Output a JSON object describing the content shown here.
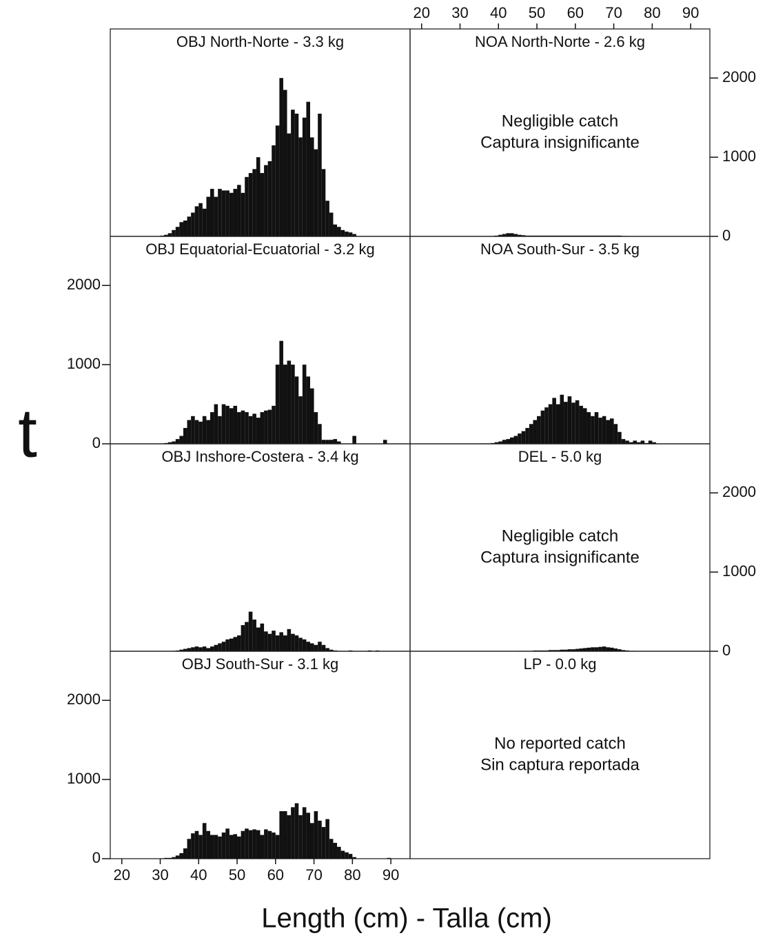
{
  "figure": {
    "ylabel": "t",
    "xlabel": "Length (cm) - Talla (cm)"
  },
  "chart_data": [
    {
      "type": "histogram",
      "title": "OBJ North-Norte - 3.3 kg",
      "color": "#111111",
      "xlim": [
        17,
        95
      ],
      "ylim": [
        0,
        2620
      ],
      "bins": [
        25,
        26,
        27,
        28,
        29,
        30,
        31,
        32,
        33,
        34,
        35,
        36,
        37,
        38,
        39,
        40,
        41,
        42,
        43,
        44,
        45,
        46,
        47,
        48,
        49,
        50,
        51,
        52,
        53,
        54,
        55,
        56,
        57,
        58,
        59,
        60,
        61,
        62,
        63,
        64,
        65,
        66,
        67,
        68,
        69,
        70,
        71,
        72,
        73,
        74,
        75,
        76,
        77,
        78,
        79,
        80,
        81,
        82,
        83,
        84,
        85,
        86,
        87,
        88,
        89,
        90
      ],
      "values": [
        0,
        0,
        0,
        0,
        0,
        10,
        20,
        40,
        80,
        120,
        180,
        200,
        250,
        300,
        380,
        420,
        350,
        500,
        600,
        500,
        600,
        580,
        580,
        550,
        600,
        650,
        550,
        750,
        800,
        850,
        1000,
        800,
        900,
        950,
        1150,
        1400,
        2000,
        1850,
        1300,
        1600,
        1550,
        1250,
        1500,
        1700,
        1250,
        1100,
        1550,
        850,
        450,
        300,
        150,
        120,
        80,
        60,
        50,
        30,
        0,
        0,
        0,
        0,
        0,
        0,
        0,
        0,
        0
      ]
    },
    {
      "type": "histogram",
      "title": "NOA North-Norte - 2.6 kg",
      "color": "#111111",
      "xlim": [
        17,
        95
      ],
      "ylim": [
        0,
        2620
      ],
      "note": [
        "Negligible catch",
        "Captura insignificante"
      ],
      "xticks": [
        20,
        30,
        40,
        50,
        60,
        70,
        80,
        90
      ],
      "xaxis_side": "top",
      "yticks": [
        0,
        1000,
        2000
      ],
      "yaxis_side": "right",
      "bins": [
        25,
        26,
        27,
        28,
        29,
        30,
        31,
        32,
        33,
        34,
        35,
        36,
        37,
        38,
        39,
        40,
        41,
        42,
        43,
        44,
        45,
        46,
        47,
        48,
        49,
        50,
        51,
        52,
        53,
        54,
        55,
        56,
        57,
        58,
        59,
        60,
        61,
        62,
        63,
        64,
        65,
        66,
        67,
        68,
        69,
        70,
        71,
        72,
        73,
        74,
        75,
        76,
        77,
        78,
        79,
        80,
        81,
        82,
        83,
        84,
        85,
        86,
        87,
        88,
        89,
        90
      ],
      "values": [
        0,
        0,
        0,
        0,
        0,
        0,
        0,
        0,
        0,
        0,
        0,
        0,
        0,
        5,
        10,
        20,
        30,
        40,
        40,
        30,
        20,
        15,
        10,
        10,
        10,
        10,
        10,
        10,
        10,
        10,
        10,
        10,
        10,
        10,
        10,
        10,
        10,
        10,
        10,
        10,
        10,
        10,
        10,
        10,
        10,
        10,
        10,
        5,
        5,
        0,
        0,
        0,
        0,
        0,
        0,
        0,
        0,
        0,
        0,
        0,
        0,
        0,
        0,
        0,
        0
      ]
    },
    {
      "type": "histogram",
      "title": "OBJ Equatorial-Ecuatorial - 3.2 kg",
      "color": "#111111",
      "xlim": [
        17,
        95
      ],
      "ylim": [
        0,
        2620
      ],
      "yticks": [
        0,
        1000,
        2000
      ],
      "yaxis_side": "left",
      "bins": [
        25,
        26,
        27,
        28,
        29,
        30,
        31,
        32,
        33,
        34,
        35,
        36,
        37,
        38,
        39,
        40,
        41,
        42,
        43,
        44,
        45,
        46,
        47,
        48,
        49,
        50,
        51,
        52,
        53,
        54,
        55,
        56,
        57,
        58,
        59,
        60,
        61,
        62,
        63,
        64,
        65,
        66,
        67,
        68,
        69,
        70,
        71,
        72,
        73,
        74,
        75,
        76,
        77,
        78,
        79,
        80,
        81,
        82,
        83,
        84,
        85,
        86,
        87,
        88,
        89,
        90
      ],
      "values": [
        0,
        0,
        0,
        0,
        0,
        5,
        10,
        20,
        30,
        60,
        100,
        200,
        300,
        350,
        300,
        280,
        350,
        300,
        400,
        500,
        350,
        500,
        480,
        450,
        480,
        400,
        420,
        400,
        350,
        380,
        330,
        400,
        420,
        430,
        480,
        1000,
        1300,
        1000,
        1050,
        1000,
        850,
        600,
        1000,
        850,
        700,
        400,
        250,
        50,
        50,
        50,
        60,
        30,
        0,
        0,
        0,
        100,
        0,
        0,
        0,
        0,
        0,
        0,
        0,
        50,
        0
      ]
    },
    {
      "type": "histogram",
      "title": "NOA South-Sur - 3.5 kg",
      "color": "#111111",
      "xlim": [
        17,
        95
      ],
      "ylim": [
        0,
        2620
      ],
      "bins": [
        25,
        26,
        27,
        28,
        29,
        30,
        31,
        32,
        33,
        34,
        35,
        36,
        37,
        38,
        39,
        40,
        41,
        42,
        43,
        44,
        45,
        46,
        47,
        48,
        49,
        50,
        51,
        52,
        53,
        54,
        55,
        56,
        57,
        58,
        59,
        60,
        61,
        62,
        63,
        64,
        65,
        66,
        67,
        68,
        69,
        70,
        71,
        72,
        73,
        74,
        75,
        76,
        77,
        78,
        79,
        80,
        81,
        82,
        83,
        84,
        85,
        86,
        87,
        88,
        89,
        90
      ],
      "values": [
        0,
        0,
        0,
        0,
        0,
        0,
        0,
        0,
        0,
        0,
        5,
        5,
        5,
        10,
        20,
        30,
        50,
        60,
        80,
        100,
        130,
        160,
        200,
        250,
        300,
        350,
        420,
        460,
        500,
        580,
        500,
        620,
        530,
        600,
        520,
        550,
        480,
        450,
        400,
        350,
        400,
        330,
        350,
        300,
        320,
        250,
        150,
        60,
        40,
        20,
        40,
        20,
        40,
        10,
        40,
        20,
        0,
        0,
        0,
        0,
        0,
        0,
        0,
        0,
        0
      ]
    },
    {
      "type": "histogram",
      "title": "OBJ Inshore-Costera - 3.4 kg",
      "color": "#111111",
      "xlim": [
        17,
        95
      ],
      "ylim": [
        0,
        2620
      ],
      "bins": [
        25,
        26,
        27,
        28,
        29,
        30,
        31,
        32,
        33,
        34,
        35,
        36,
        37,
        38,
        39,
        40,
        41,
        42,
        43,
        44,
        45,
        46,
        47,
        48,
        49,
        50,
        51,
        52,
        53,
        54,
        55,
        56,
        57,
        58,
        59,
        60,
        61,
        62,
        63,
        64,
        65,
        66,
        67,
        68,
        69,
        70,
        71,
        72,
        73,
        74,
        75,
        76,
        77,
        78,
        79,
        80,
        81,
        82,
        83,
        84,
        85,
        86,
        87,
        88,
        89,
        90
      ],
      "values": [
        0,
        0,
        0,
        0,
        0,
        0,
        0,
        0,
        5,
        10,
        20,
        30,
        40,
        50,
        60,
        50,
        60,
        40,
        60,
        80,
        100,
        120,
        150,
        160,
        180,
        200,
        330,
        370,
        500,
        400,
        300,
        350,
        250,
        220,
        260,
        200,
        240,
        200,
        280,
        220,
        200,
        170,
        150,
        120,
        100,
        80,
        120,
        80,
        40,
        20,
        10,
        5,
        0,
        0,
        10,
        0,
        0,
        0,
        0,
        10,
        0,
        10,
        0,
        0,
        0
      ]
    },
    {
      "type": "histogram",
      "title": "DEL - 5.0 kg",
      "color": "#111111",
      "xlim": [
        17,
        95
      ],
      "ylim": [
        0,
        2620
      ],
      "note": [
        "Negligible catch",
        "Captura insignificante"
      ],
      "yticks": [
        0,
        1000,
        2000
      ],
      "yaxis_side": "right",
      "bins": [
        25,
        26,
        27,
        28,
        29,
        30,
        31,
        32,
        33,
        34,
        35,
        36,
        37,
        38,
        39,
        40,
        41,
        42,
        43,
        44,
        45,
        46,
        47,
        48,
        49,
        50,
        51,
        52,
        53,
        54,
        55,
        56,
        57,
        58,
        59,
        60,
        61,
        62,
        63,
        64,
        65,
        66,
        67,
        68,
        69,
        70,
        71,
        72,
        73,
        74,
        75,
        76,
        77,
        78,
        79,
        80,
        81,
        82,
        83,
        84,
        85,
        86,
        87,
        88,
        89,
        90
      ],
      "values": [
        0,
        0,
        0,
        0,
        0,
        0,
        0,
        0,
        0,
        0,
        0,
        0,
        0,
        0,
        0,
        0,
        0,
        0,
        0,
        0,
        5,
        5,
        5,
        5,
        10,
        10,
        10,
        10,
        15,
        15,
        15,
        20,
        20,
        25,
        25,
        30,
        35,
        40,
        45,
        50,
        50,
        55,
        60,
        50,
        45,
        35,
        25,
        15,
        10,
        5,
        5,
        0,
        0,
        0,
        0,
        0,
        0,
        0,
        0,
        0,
        0,
        0,
        0,
        0,
        0
      ]
    },
    {
      "type": "histogram",
      "title": "OBJ South-Sur - 3.1 kg",
      "color": "#111111",
      "xlim": [
        17,
        95
      ],
      "ylim": [
        0,
        2620
      ],
      "yticks": [
        0,
        1000,
        2000
      ],
      "yaxis_side": "left",
      "xticks": [
        20,
        30,
        40,
        50,
        60,
        70,
        80,
        90
      ],
      "xaxis_side": "bottom",
      "bins": [
        25,
        26,
        27,
        28,
        29,
        30,
        31,
        32,
        33,
        34,
        35,
        36,
        37,
        38,
        39,
        40,
        41,
        42,
        43,
        44,
        45,
        46,
        47,
        48,
        49,
        50,
        51,
        52,
        53,
        54,
        55,
        56,
        57,
        58,
        59,
        60,
        61,
        62,
        63,
        64,
        65,
        66,
        67,
        68,
        69,
        70,
        71,
        72,
        73,
        74,
        75,
        76,
        77,
        78,
        79,
        80,
        81,
        82,
        83,
        84,
        85,
        86,
        87,
        88,
        89,
        90
      ],
      "values": [
        0,
        0,
        0,
        0,
        0,
        5,
        10,
        10,
        20,
        40,
        70,
        130,
        250,
        320,
        350,
        300,
        450,
        350,
        300,
        300,
        280,
        330,
        380,
        300,
        310,
        280,
        350,
        380,
        360,
        370,
        360,
        300,
        370,
        350,
        330,
        300,
        600,
        600,
        550,
        650,
        700,
        550,
        650,
        580,
        450,
        600,
        480,
        400,
        500,
        250,
        200,
        150,
        100,
        80,
        60,
        20,
        0,
        0,
        0,
        0,
        0,
        0,
        0,
        0,
        10
      ]
    },
    {
      "type": "histogram",
      "title": "LP - 0.0 kg",
      "xlim": [
        17,
        95
      ],
      "ylim": [
        0,
        2620
      ],
      "note": [
        "No reported catch",
        "Sin captura reportada"
      ]
    }
  ]
}
